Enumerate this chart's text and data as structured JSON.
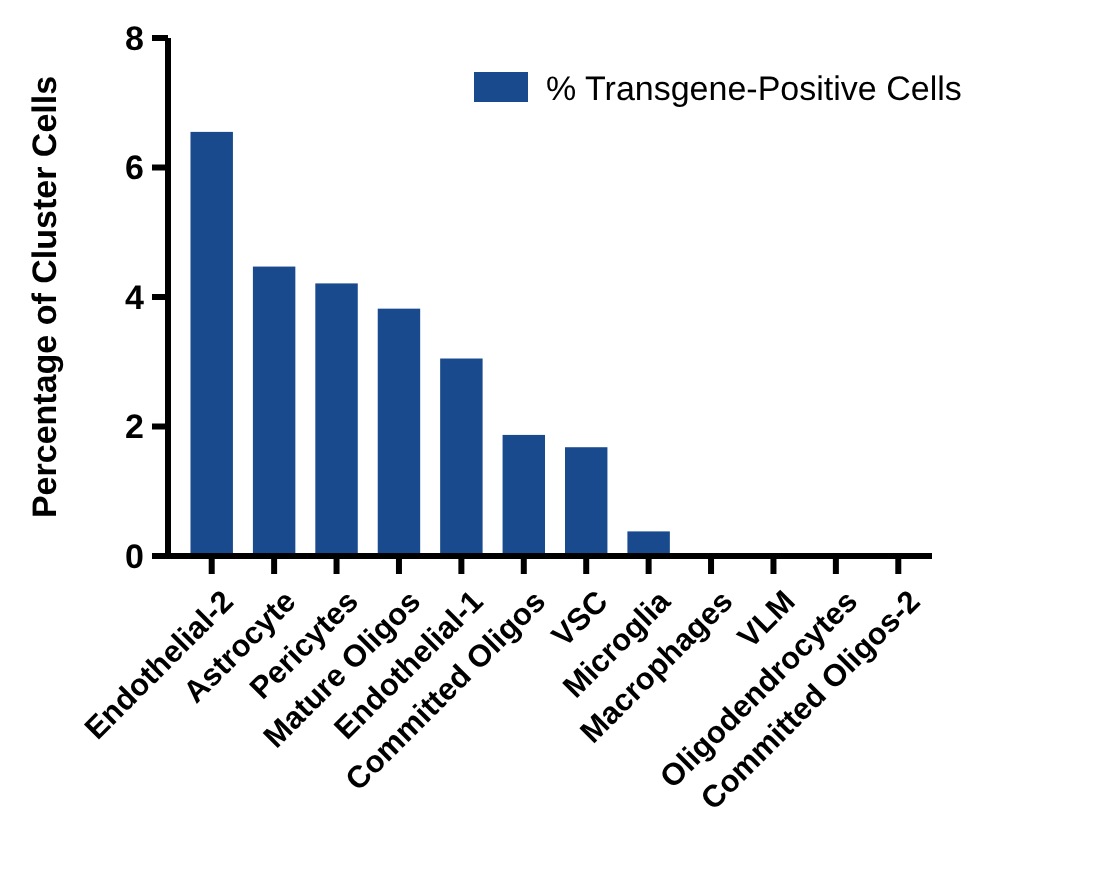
{
  "chart_data": {
    "type": "bar",
    "ylabel": "Percentage of Cluster Cells",
    "categories": [
      "Endothelial-2",
      "Astrocyte",
      "Pericytes",
      "Mature Oligos",
      "Endothelial-1",
      "Committed Oligos",
      "VSC",
      "Microglia",
      "Macrophages",
      "VLM",
      "Oligodendrocytes",
      "Committed Oligos-2"
    ],
    "series": [
      {
        "name": "% Transgene-Positive Cells",
        "color": "#1a4a8e",
        "values": [
          6.55,
          4.47,
          4.21,
          3.82,
          3.05,
          1.87,
          1.68,
          0.38,
          0,
          0,
          0,
          0
        ]
      }
    ],
    "ylim": [
      0,
      8
    ],
    "yticks": [
      0,
      2,
      4,
      6,
      8
    ],
    "legend": "top right",
    "grid": false
  }
}
